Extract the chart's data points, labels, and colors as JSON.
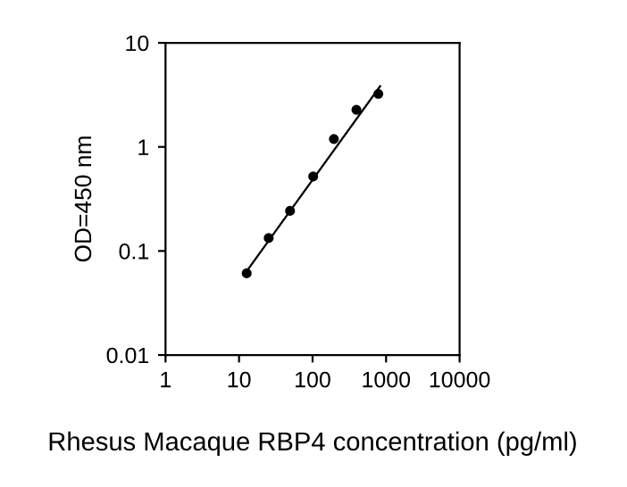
{
  "chart_data": {
    "type": "scatter",
    "xlabel": "Rhesus Macaque RBP4 concentration (pg/ml)",
    "ylabel": "OD=450 nm",
    "log": "xy",
    "grid": false,
    "legend": false,
    "xlim": [
      1,
      10000
    ],
    "xticks": [
      1,
      10,
      100,
      1000,
      10000
    ],
    "ylim": [
      0.01,
      10
    ],
    "yticks": [
      0.01,
      0.1,
      1,
      10
    ],
    "series": [
      {
        "color": "#000000",
        "marker": "circle",
        "x": [
          12.7,
          25.3,
          49.4,
          102,
          195,
          395,
          785
        ],
        "values": [
          0.061,
          0.133,
          0.243,
          0.52,
          1.19,
          2.27,
          3.23
        ]
      },
      {
        "type": "line",
        "color": "#000000",
        "x": [
          12.3,
          830
        ],
        "values": [
          0.062,
          3.83
        ],
        "marker": "none",
        "line_style": "solid"
      }
    ]
  }
}
